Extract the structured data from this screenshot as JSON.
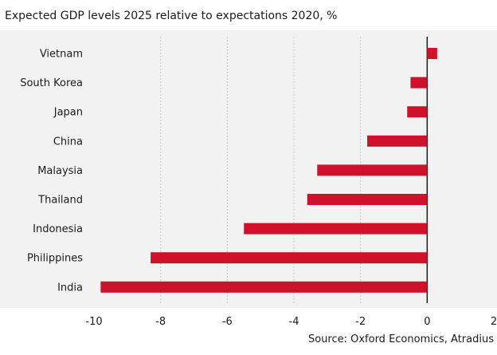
{
  "chart_data": {
    "type": "bar",
    "orientation": "horizontal",
    "title": "Expected GDP levels 2025 relative to expectations 2020, %",
    "categories": [
      "Vietnam",
      "South Korea",
      "Japan",
      "China",
      "Malaysia",
      "Thailand",
      "Indonesia",
      "Philippines",
      "India"
    ],
    "values": [
      0.3,
      -0.5,
      -0.6,
      -1.8,
      -3.3,
      -3.6,
      -5.5,
      -8.3,
      -9.8
    ],
    "xlim": [
      -10,
      2
    ],
    "xticks": [
      "-10",
      "-8",
      "-6",
      "-4",
      "-2",
      "0",
      "2"
    ],
    "xlabel": "",
    "ylabel": "",
    "grid": "vertical dashed",
    "bar_color": "#d0112b",
    "source": "Source: Oxford Economics, Atradius"
  }
}
